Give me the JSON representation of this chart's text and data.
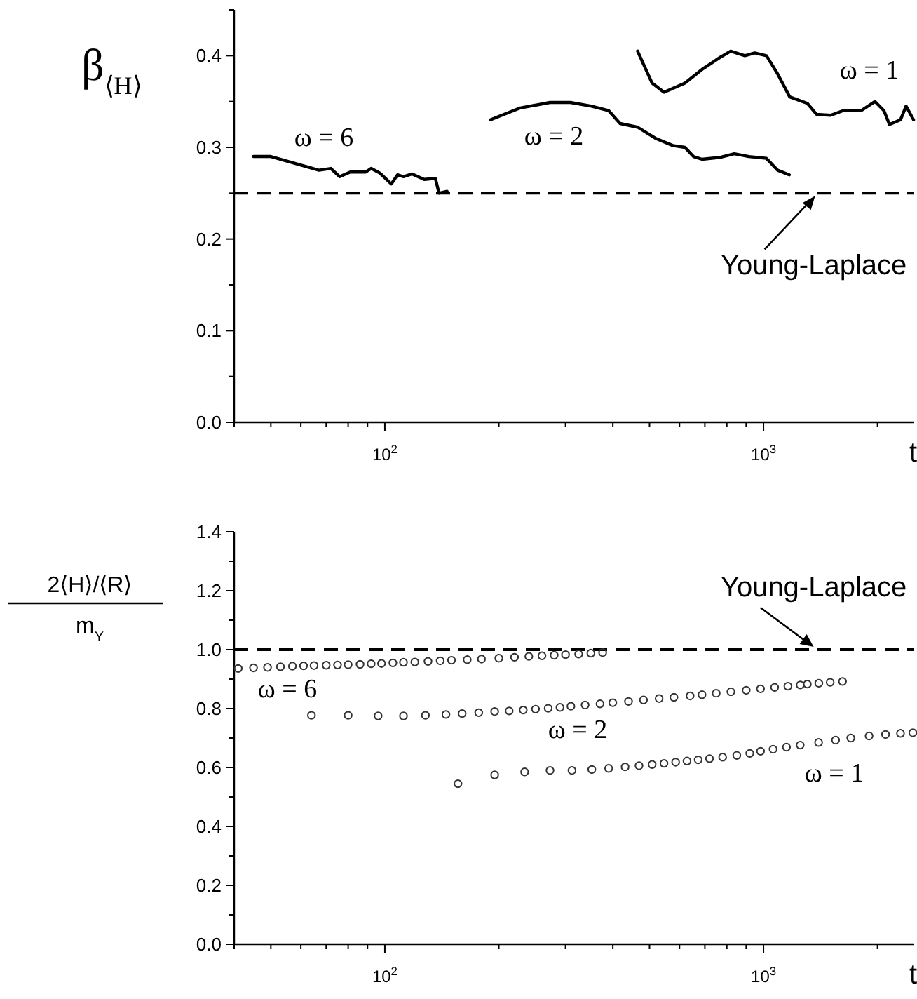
{
  "chart_data": [
    {
      "type": "line",
      "ylabel": "β$_{⟨H⟩}$",
      "xlabel": "t",
      "log": "x",
      "grid": false,
      "marker": "none",
      "line_style": "solid",
      "xlim": [
        40,
        2500
      ],
      "ylim": [
        0,
        0.45
      ],
      "xticks": [
        {
          "value": 40,
          "label": null
        },
        {
          "value": 50,
          "label": null
        },
        {
          "value": 60,
          "label": null
        },
        {
          "value": 70,
          "label": null
        },
        {
          "value": 80,
          "label": null
        },
        {
          "value": 90,
          "label": null
        },
        {
          "value": 100,
          "label": "10$^{2}$"
        },
        {
          "value": 200,
          "label": null
        },
        {
          "value": 300,
          "label": null
        },
        {
          "value": 400,
          "label": null
        },
        {
          "value": 500,
          "label": null
        },
        {
          "value": 600,
          "label": null
        },
        {
          "value": 700,
          "label": null
        },
        {
          "value": 800,
          "label": null
        },
        {
          "value": 900,
          "label": null
        },
        {
          "value": 1000,
          "label": "10$^{3}$"
        },
        {
          "value": 2000,
          "label": null
        }
      ],
      "yticks": [
        {
          "value": 0,
          "label": "0.0"
        },
        {
          "value": 0.05,
          "label": null
        },
        {
          "value": 0.1,
          "label": "0.1"
        },
        {
          "value": 0.15,
          "label": null
        },
        {
          "value": 0.2,
          "label": "0.2"
        },
        {
          "value": 0.25,
          "label": null
        },
        {
          "value": 0.3,
          "label": "0.3"
        },
        {
          "value": 0.35,
          "label": null
        },
        {
          "value": 0.4,
          "label": "0.4"
        },
        {
          "value": 0.45,
          "label": null
        }
      ],
      "ref_lines": [
        {
          "axis": "y",
          "value": 0.25,
          "color": "#000000",
          "line_style": "dashed"
        }
      ],
      "annotations": [
        {
          "text": "Young-Laplace",
          "x": 1380,
          "y": 0.25
        }
      ],
      "series": [
        {
          "name": "ω = 6",
          "color": "#000000",
          "x": [
            45,
            50,
            67,
            72,
            76,
            81,
            89,
            92,
            97,
            104,
            108,
            112,
            118,
            127,
            136,
            139,
            146
          ],
          "values": [
            0.29,
            0.29,
            0.275,
            0.277,
            0.268,
            0.273,
            0.273,
            0.277,
            0.272,
            0.26,
            0.27,
            0.268,
            0.271,
            0.265,
            0.266,
            0.25,
            0.252
          ]
        },
        {
          "name": "ω = 2",
          "color": "#000000",
          "x": [
            190,
            228,
            273,
            309,
            350,
            390,
            418,
            465,
            518,
            576,
            620,
            653,
            688,
            767,
            837,
            915,
            1018,
            1090,
            1170
          ],
          "values": [
            0.33,
            0.343,
            0.349,
            0.349,
            0.345,
            0.34,
            0.326,
            0.322,
            0.31,
            0.302,
            0.3,
            0.29,
            0.287,
            0.289,
            0.293,
            0.29,
            0.288,
            0.275,
            0.27
          ]
        },
        {
          "name": "ω = 1",
          "color": "#000000",
          "x": [
            465,
            508,
            546,
            620,
            688,
            767,
            819,
            893,
            948,
            1018,
            1090,
            1173,
            1305,
            1380,
            1505,
            1622,
            1810,
            1970,
            2080,
            2150,
            2300,
            2380,
            2490
          ],
          "values": [
            0.405,
            0.37,
            0.36,
            0.37,
            0.385,
            0.398,
            0.405,
            0.4,
            0.403,
            0.4,
            0.38,
            0.355,
            0.348,
            0.336,
            0.335,
            0.34,
            0.34,
            0.35,
            0.34,
            0.325,
            0.33,
            0.345,
            0.33
          ]
        }
      ]
    },
    {
      "type": "scatter",
      "ylabel": "2⟨H⟩/⟨R⟩\nm$_{Y}$",
      "xlabel": "t",
      "log": "x",
      "grid": false,
      "marker": "circle",
      "xlim": [
        40,
        2500
      ],
      "ylim": [
        0,
        1.4
      ],
      "xticks": [
        {
          "value": 40,
          "label": null
        },
        {
          "value": 50,
          "label": null
        },
        {
          "value": 60,
          "label": null
        },
        {
          "value": 70,
          "label": null
        },
        {
          "value": 80,
          "label": null
        },
        {
          "value": 90,
          "label": null
        },
        {
          "value": 100,
          "label": "10$^{2}$"
        },
        {
          "value": 200,
          "label": null
        },
        {
          "value": 300,
          "label": null
        },
        {
          "value": 400,
          "label": null
        },
        {
          "value": 500,
          "label": null
        },
        {
          "value": 600,
          "label": null
        },
        {
          "value": 700,
          "label": null
        },
        {
          "value": 800,
          "label": null
        },
        {
          "value": 900,
          "label": null
        },
        {
          "value": 1000,
          "label": "10$^{3}$"
        },
        {
          "value": 2000,
          "label": null
        }
      ],
      "yticks": [
        {
          "value": 0,
          "label": "0.0"
        },
        {
          "value": 0.1,
          "label": null
        },
        {
          "value": 0.2,
          "label": "0.2"
        },
        {
          "value": 0.3,
          "label": null
        },
        {
          "value": 0.4,
          "label": "0.4"
        },
        {
          "value": 0.5,
          "label": null
        },
        {
          "value": 0.6,
          "label": "0.6"
        },
        {
          "value": 0.7,
          "label": null
        },
        {
          "value": 0.8,
          "label": "0.8"
        },
        {
          "value": 0.9,
          "label": null
        },
        {
          "value": 1.0,
          "label": "1.0"
        },
        {
          "value": 1.1,
          "label": null
        },
        {
          "value": 1.2,
          "label": "1.2"
        },
        {
          "value": 1.3,
          "label": null
        },
        {
          "value": 1.4,
          "label": "1.4"
        }
      ],
      "ref_lines": [
        {
          "axis": "y",
          "value": 1.0,
          "color": "#000000",
          "line_style": "dashed"
        }
      ],
      "annotations": [
        {
          "text": "Young-Laplace",
          "x": 1380,
          "y": 1.0
        }
      ],
      "series": [
        {
          "name": "ω = 6",
          "color": "#333333",
          "x": [
            41,
            45,
            49,
            53,
            57,
            61,
            65,
            70,
            75,
            80,
            86,
            92,
            98,
            105,
            112,
            120,
            130,
            140,
            150,
            165,
            180,
            200,
            220,
            240,
            260,
            280,
            300,
            325,
            350,
            376
          ],
          "values": [
            0.936,
            0.938,
            0.94,
            0.942,
            0.944,
            0.945,
            0.946,
            0.947,
            0.948,
            0.949,
            0.95,
            0.952,
            0.953,
            0.955,
            0.957,
            0.958,
            0.96,
            0.962,
            0.964,
            0.966,
            0.968,
            0.971,
            0.974,
            0.977,
            0.979,
            0.981,
            0.983,
            0.985,
            0.988,
            0.99
          ]
        },
        {
          "name": "ω = 2",
          "color": "#333333",
          "x": [
            64,
            80,
            96,
            112,
            128,
            145,
            160,
            177,
            195,
            213,
            232,
            250,
            270,
            290,
            310,
            338,
            370,
            400,
            440,
            482,
            530,
            580,
            640,
            688,
            750,
            820,
            900,
            982,
            1070,
            1160,
            1250,
            1305,
            1400,
            1500,
            1617
          ],
          "values": [
            0.777,
            0.777,
            0.775,
            0.775,
            0.777,
            0.78,
            0.783,
            0.786,
            0.79,
            0.792,
            0.795,
            0.798,
            0.801,
            0.804,
            0.808,
            0.812,
            0.816,
            0.82,
            0.824,
            0.829,
            0.834,
            0.838,
            0.843,
            0.847,
            0.852,
            0.857,
            0.862,
            0.867,
            0.872,
            0.876,
            0.88,
            0.883,
            0.886,
            0.889,
            0.892
          ]
        },
        {
          "name": "ω = 1",
          "color": "#333333",
          "x": [
            156,
            195,
            234,
            273,
            312,
            352,
            390,
            431,
            469,
            508,
            546,
            586,
            628,
            672,
            720,
            780,
            850,
            920,
            982,
            1060,
            1150,
            1250,
            1398,
            1550,
            1700,
            1900,
            2100,
            2300,
            2480
          ],
          "values": [
            0.545,
            0.575,
            0.585,
            0.59,
            0.59,
            0.593,
            0.597,
            0.602,
            0.606,
            0.61,
            0.614,
            0.618,
            0.622,
            0.626,
            0.63,
            0.635,
            0.641,
            0.648,
            0.655,
            0.662,
            0.669,
            0.676,
            0.685,
            0.693,
            0.7,
            0.707,
            0.712,
            0.716,
            0.718
          ]
        }
      ]
    }
  ]
}
